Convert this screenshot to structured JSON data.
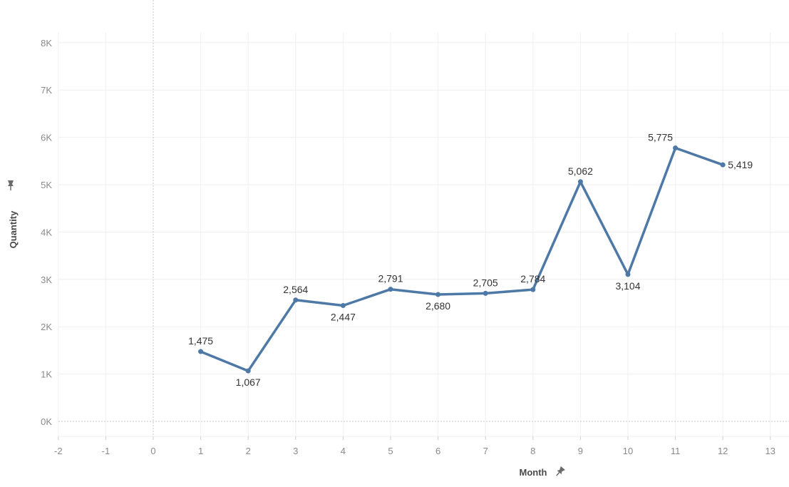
{
  "chart_data": {
    "type": "line",
    "xlabel": "Month",
    "ylabel": "Quantity",
    "xlim": [
      -2,
      13
    ],
    "ylim": [
      0,
      8000
    ],
    "x_ticks": [
      "-2",
      "-1",
      "0",
      "1",
      "2",
      "3",
      "4",
      "5",
      "6",
      "7",
      "8",
      "9",
      "10",
      "11",
      "12",
      "13"
    ],
    "y_ticks": [
      "0K",
      "1K",
      "2K",
      "3K",
      "4K",
      "5K",
      "6K",
      "7K",
      "8K"
    ],
    "grid": true,
    "line_color": "#4e79a7",
    "series": [
      {
        "x": [
          1,
          2,
          3,
          4,
          5,
          6,
          7,
          8,
          9,
          10,
          11,
          12
        ],
        "values": [
          1475,
          1067,
          2564,
          2447,
          2791,
          2680,
          2705,
          2784,
          5062,
          3104,
          5775,
          5419
        ],
        "labels": [
          "1,475",
          "1,067",
          "2,564",
          "2,447",
          "2,791",
          "2,680",
          "2,705",
          "2,784",
          "5,062",
          "3,104",
          "5,775",
          "5,419"
        ]
      }
    ]
  },
  "icons": {
    "x_axis_pin": "pin-icon",
    "y_axis_pin": "pin-icon"
  }
}
